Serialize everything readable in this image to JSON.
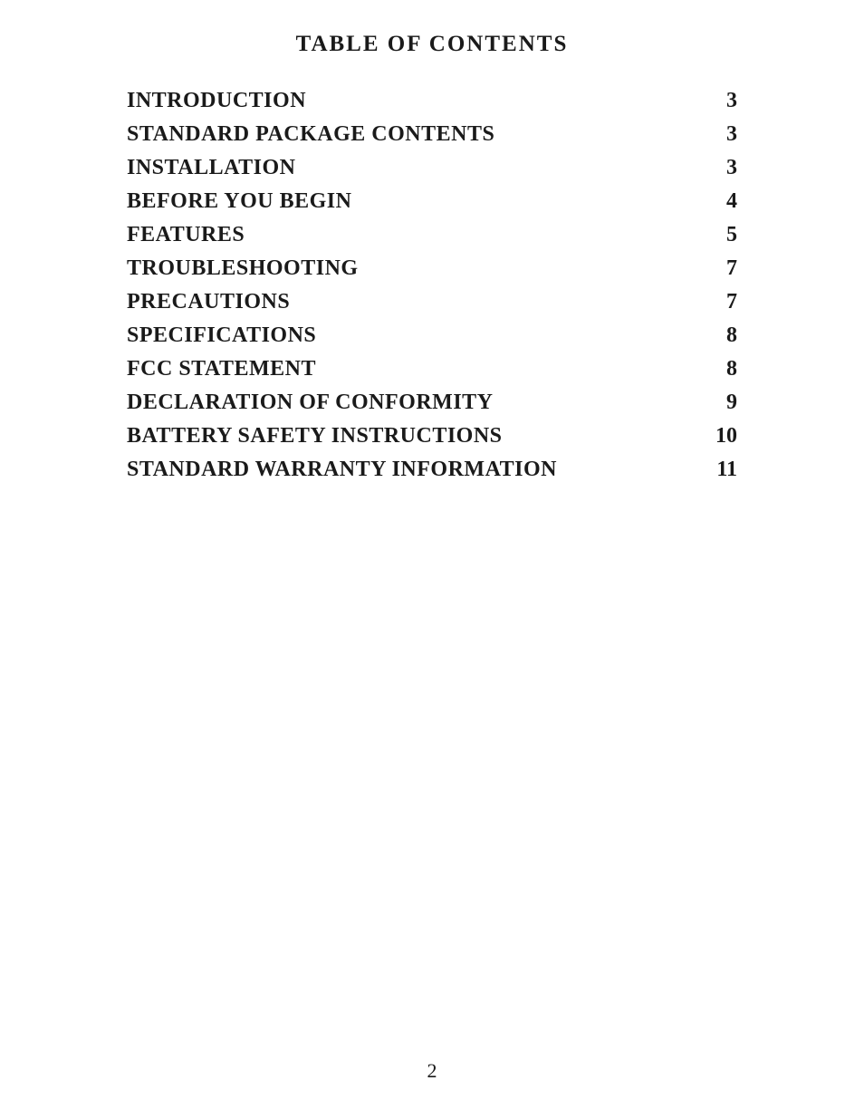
{
  "title": "TABLE OF CONTENTS",
  "toc": {
    "entries": [
      {
        "label": "INTRODUCTION",
        "page": "3"
      },
      {
        "label": "STANDARD PACKAGE CONTENTS",
        "page": "3"
      },
      {
        "label": "INSTALLATION",
        "page": "3"
      },
      {
        "label": "BEFORE YOU BEGIN",
        "page": "4"
      },
      {
        "label": "FEATURES",
        "page": "5"
      },
      {
        "label": "TROUBLESHOOTING",
        "page": "7"
      },
      {
        "label": "PRECAUTIONS",
        "page": "7"
      },
      {
        "label": "SPECIFICATIONS",
        "page": "8"
      },
      {
        "label": "FCC STATEMENT",
        "page": "8"
      },
      {
        "label": "DECLARATION OF CONFORMITY",
        "page": "9"
      },
      {
        "label": "BATTERY SAFETY INSTRUCTIONS",
        "page": "10"
      },
      {
        "label": "STANDARD WARRANTY INFORMATION",
        "page": "11"
      }
    ]
  },
  "page_number": "2",
  "style": {
    "background_color": "#ffffff",
    "text_color": "#1a1a1a",
    "font_family": "Times New Roman",
    "title_fontsize": 25,
    "entry_fontsize": 24,
    "page_number_fontsize": 22
  }
}
